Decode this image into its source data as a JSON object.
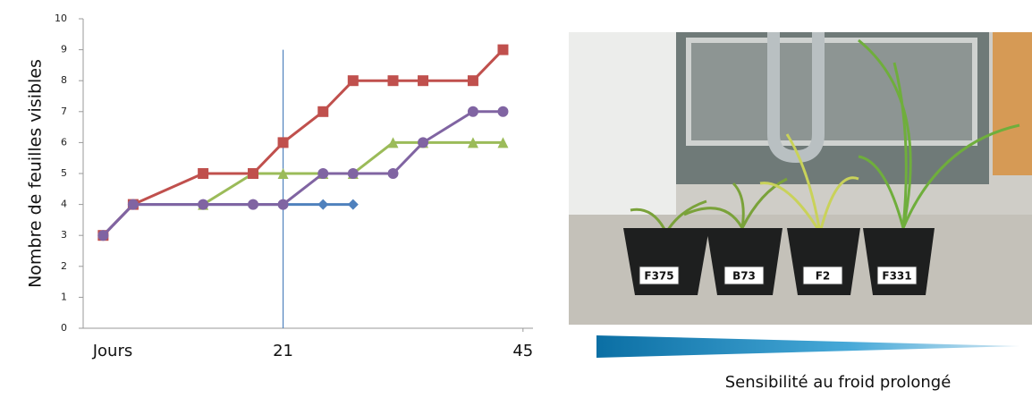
{
  "chart_data": {
    "type": "line",
    "y_label": "Nombre de feuilles visibles",
    "x_label": "Jours",
    "x": [
      3,
      6,
      13,
      18,
      21,
      25,
      28,
      32,
      35,
      40,
      43
    ],
    "xlim": [
      1,
      46
    ],
    "xticks": [
      21,
      45
    ],
    "ylim": [
      0,
      10
    ],
    "yticks": [
      0,
      1,
      2,
      3,
      4,
      5,
      6,
      7,
      8,
      9,
      10
    ],
    "series": [
      {
        "color": "#4f81bd",
        "marker": "diamond",
        "values": [
          3,
          4,
          4,
          4,
          4,
          4,
          4,
          null,
          null,
          null,
          null
        ]
      },
      {
        "color": "#9bbb59",
        "marker": "triangle",
        "values": [
          null,
          null,
          4,
          5,
          5,
          5,
          5,
          6,
          6,
          6,
          6
        ]
      },
      {
        "color": "#c0504d",
        "marker": "square",
        "values": [
          3,
          4,
          5,
          5,
          6,
          7,
          8,
          8,
          8,
          8,
          9
        ]
      },
      {
        "color": "#8064a2",
        "marker": "circle",
        "values": [
          3,
          4,
          4,
          4,
          4,
          5,
          5,
          5,
          6,
          7,
          7
        ]
      }
    ]
  },
  "photo": {
    "pot_labels": [
      "F375",
      "B73",
      "F2",
      "F331"
    ]
  },
  "caption": "Sensibilité au froid prolongé"
}
